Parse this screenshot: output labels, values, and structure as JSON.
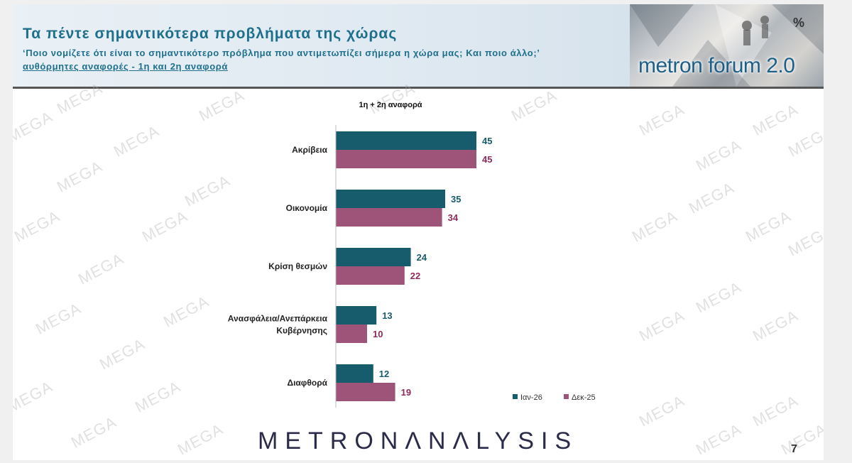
{
  "header": {
    "title": "Τα πέντε σημαντικότερα προβλήματα της χώρας",
    "question": "‘Ποιο νομίζετε ότι είναι το σημαντικότερο πρόβλημα που αντιμετωπίζει σήμερα η χώρα μας; Και ποιο άλλο;’",
    "question_note": "αυθόρμητες αναφορές - 1η και 2η αναφορά"
  },
  "logo": {
    "text": "metron forum 2.0",
    "badge": "%"
  },
  "watermark_text": "MEGA",
  "footer": {
    "brand": "METRONΛNΛLYSIS",
    "page_number": "7"
  },
  "colors": {
    "series_1": "#175c6c",
    "series_2": "#9e5478",
    "label_1": "#175c6c",
    "label_2": "#8e2a5c"
  },
  "chart_data": {
    "type": "bar",
    "orientation": "horizontal",
    "title": "1η + 2η αναφορά",
    "categories": [
      "Ακρίβεια",
      "Οικονομία",
      "Κρίση θεσμών",
      "Ανασφάλεια/Ανεπάρκεια Κυβέρνησης",
      "Διαφθορά"
    ],
    "category_lines": [
      [
        "Ακρίβεια"
      ],
      [
        "Οικονομία"
      ],
      [
        "Κρίση θεσμών"
      ],
      [
        "Ανασφάλεια/Ανεπάρκεια",
        "Κυβέρνησης"
      ],
      [
        "Διαφθορά"
      ]
    ],
    "series": [
      {
        "name": "Ιαν-26",
        "values": [
          45,
          35,
          24,
          13,
          12
        ]
      },
      {
        "name": "Δεκ-25",
        "values": [
          45,
          34,
          22,
          10,
          19
        ]
      }
    ],
    "xlim": [
      0,
      100
    ],
    "grid": false,
    "legend": "bottom-right"
  }
}
